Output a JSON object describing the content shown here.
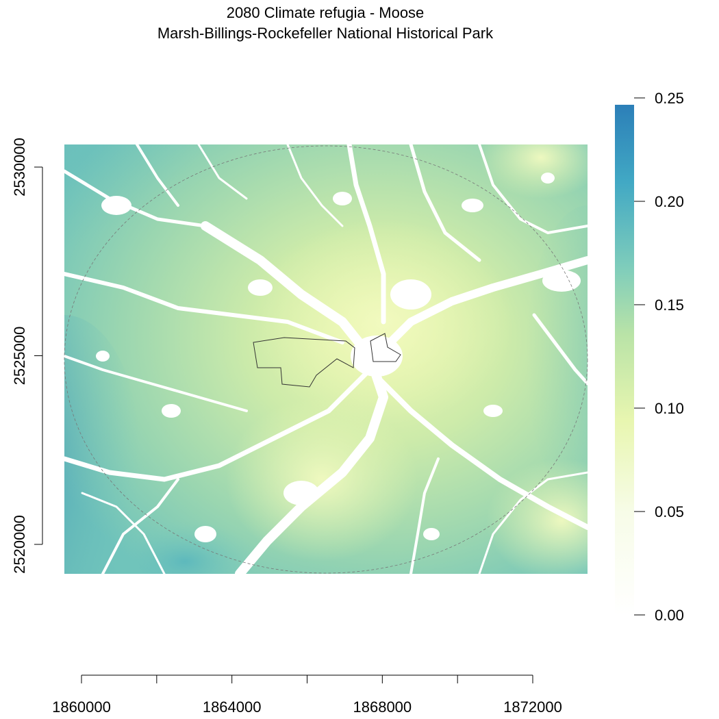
{
  "title": "2080 Climate refugia - Moose",
  "subtitle": "Marsh-Billings-Rockefeller National Historical Park",
  "x_axis": {
    "ticks": [
      "1860000",
      "1864000",
      "1868000",
      "1872000"
    ]
  },
  "y_axis": {
    "ticks": [
      "2520000",
      "2525000",
      "2530000"
    ]
  },
  "legend": {
    "labels": [
      "0.00",
      "0.05",
      "0.10",
      "0.15",
      "0.20",
      "0.25"
    ],
    "colors": [
      "#ffffff",
      "#f7fce8",
      "#e8f6b0",
      "#c7e9b4",
      "#7fcdbb",
      "#41b6c4",
      "#2c7fb8"
    ]
  },
  "chart_data": {
    "type": "heatmap",
    "value_range": [
      0,
      0.25
    ],
    "x_range": [
      1859000,
      1873500
    ],
    "y_range": [
      2518800,
      2530800
    ],
    "x_ticks": [
      1860000,
      1862000,
      1864000,
      1866000,
      1868000,
      1870000,
      1872000
    ],
    "y_ticks": [
      2520000,
      2525000,
      2530000
    ],
    "legend_ticks": [
      0,
      0.05,
      0.1,
      0.15,
      0.2,
      0.25
    ],
    "legend_placement": "right",
    "grid": false
  }
}
